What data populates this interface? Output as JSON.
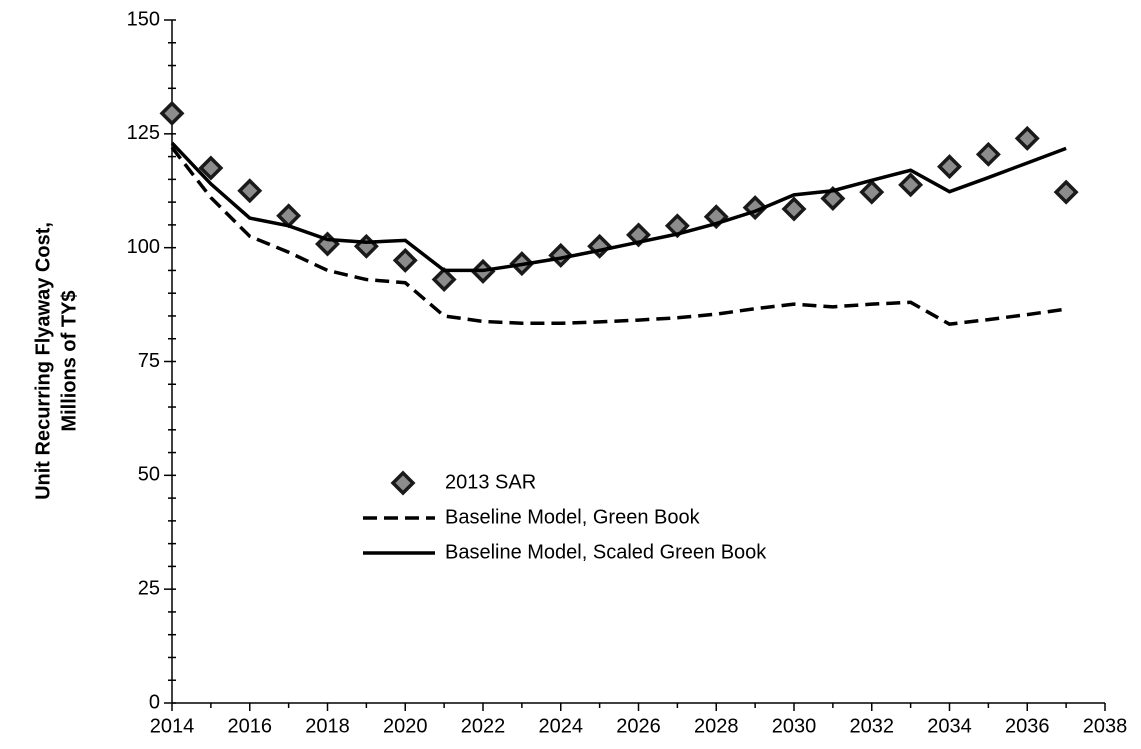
{
  "chart_data": {
    "type": "line",
    "ylabel": [
      "Unit Recurring Flyaway Cost,",
      "Millions of TY$"
    ],
    "x": [
      2014,
      2015,
      2016,
      2017,
      2018,
      2019,
      2020,
      2021,
      2022,
      2023,
      2024,
      2025,
      2026,
      2027,
      2028,
      2029,
      2030,
      2031,
      2032,
      2033,
      2034,
      2035,
      2036,
      2037
    ],
    "series": [
      {
        "name": "2013 SAR",
        "style": "marker",
        "color": "#1a1a1a",
        "marker_fill": "#8c8c8c",
        "values": [
          129.5,
          117.5,
          112.5,
          107,
          100.8,
          100.3,
          97.2,
          93,
          94.8,
          96.5,
          98.3,
          100.3,
          102.8,
          104.8,
          106.8,
          108.8,
          108.5,
          110.8,
          112.2,
          113.8,
          117.8,
          120.5,
          124,
          112.2
        ]
      },
      {
        "name": "Baseline Model, Green Book",
        "style": "dashed",
        "color": "#000000",
        "values": [
          122,
          111,
          102.5,
          99,
          95,
          93,
          92.3,
          85,
          83.8,
          83.4,
          83.4,
          83.7,
          84.1,
          84.6,
          85.4,
          86.6,
          87.6,
          87,
          87.6,
          88,
          83.2,
          84.2,
          85.3,
          86.5
        ]
      },
      {
        "name": "Baseline Model, Scaled Green Book",
        "style": "solid",
        "color": "#000000",
        "values": [
          123,
          114,
          106.5,
          104.8,
          101.8,
          101.2,
          101.6,
          95,
          95,
          96.3,
          97.7,
          99.4,
          101.2,
          103,
          105.3,
          108,
          111.6,
          112.5,
          114.8,
          117,
          112.3,
          115.4,
          118.6,
          121.8
        ]
      }
    ],
    "xlim": [
      2014,
      2038
    ],
    "xticks": [
      2014,
      2016,
      2018,
      2020,
      2022,
      2024,
      2026,
      2028,
      2030,
      2032,
      2034,
      2036,
      2038
    ],
    "xminorticks": [
      2015,
      2017,
      2019,
      2021,
      2023,
      2025,
      2027,
      2029,
      2031,
      2033,
      2035,
      2037
    ],
    "ylim": [
      0,
      150
    ],
    "yticks": [
      0,
      25,
      50,
      75,
      100,
      125,
      150
    ],
    "yminorticks": [
      5,
      10,
      15,
      20,
      30,
      35,
      40,
      45,
      55,
      60,
      65,
      70,
      80,
      85,
      90,
      95,
      105,
      110,
      115,
      120,
      130,
      135,
      140,
      145
    ],
    "grid": false,
    "legend": "center"
  }
}
